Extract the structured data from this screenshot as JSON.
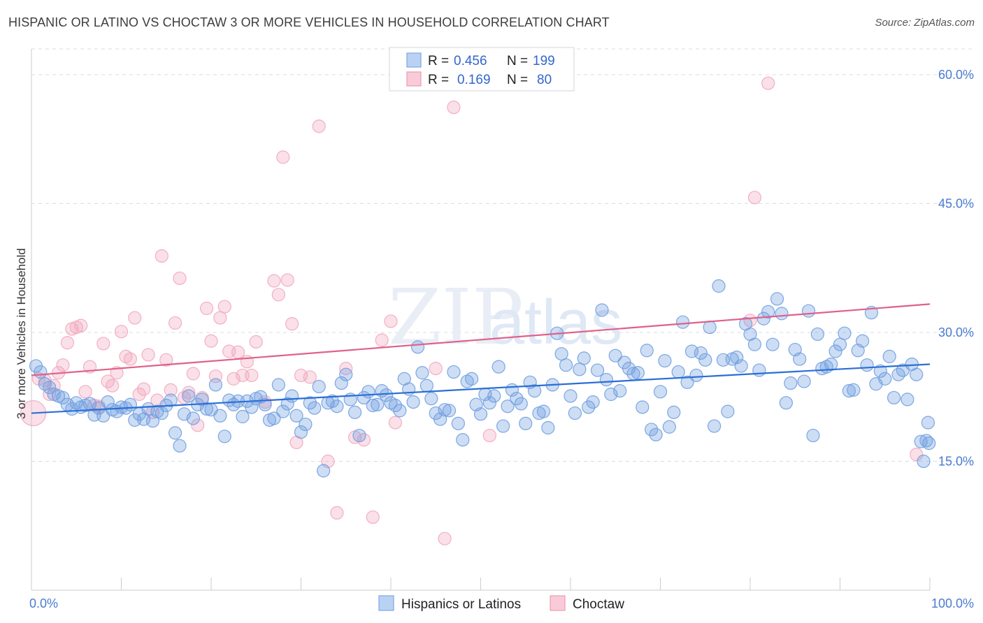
{
  "title": "HISPANIC OR LATINO VS CHOCTAW 3 OR MORE VEHICLES IN HOUSEHOLD CORRELATION CHART",
  "source": "Source: ZipAtlas.com",
  "watermark": {
    "zip": "ZIP",
    "atlas": "atlas"
  },
  "colors": {
    "blue": "#6f9fe0",
    "blue_line": "#2a6fd6",
    "pink": "#f2a7bd",
    "pink_line": "#e0608a",
    "grid": "#d8dce3"
  },
  "legend": {
    "rows": [
      {
        "r_label": "R =",
        "r_value": "0.456",
        "n_label": "N =",
        "n_value": "199"
      },
      {
        "r_label": "R =",
        "r_value": "0.169",
        "n_label": "N =",
        "n_value": "80"
      }
    ]
  },
  "bottom_legend": [
    "Hispanics or Latinos",
    "Choctaw"
  ],
  "chart_data": {
    "type": "scatter",
    "xlabel": "",
    "ylabel": "3 or more Vehicles in Household",
    "xlim": [
      0,
      100
    ],
    "ylim": [
      0,
      63
    ],
    "x_tick_labels": [
      "0.0%",
      "100.0%"
    ],
    "y_ticks": [
      15,
      30,
      45,
      60
    ],
    "y_tick_labels": [
      "15.0%",
      "30.0%",
      "45.0%",
      "60.0%"
    ],
    "grid": true,
    "legend_position": "top-center",
    "series": [
      {
        "name": "Hispanics or Latinos",
        "trend": {
          "x": [
            0,
            100
          ],
          "y": [
            20.6,
            26.3
          ]
        },
        "points": [
          [
            0.5,
            26.1
          ],
          [
            1,
            25.4
          ],
          [
            1.5,
            24.0
          ],
          [
            2,
            23.6
          ],
          [
            2.5,
            22.8
          ],
          [
            3,
            22.6
          ],
          [
            3.5,
            22.4
          ],
          [
            4,
            21.6
          ],
          [
            4.5,
            21.1
          ],
          [
            5,
            21.8
          ],
          [
            5.5,
            21.3
          ],
          [
            6,
            21.5
          ],
          [
            6.5,
            21.7
          ],
          [
            7,
            20.4
          ],
          [
            7.5,
            21.2
          ],
          [
            8,
            20.3
          ],
          [
            8.5,
            21.9
          ],
          [
            9,
            21.0
          ],
          [
            9.5,
            20.8
          ],
          [
            10,
            21.3
          ],
          [
            10.5,
            21.2
          ],
          [
            11,
            21.6
          ],
          [
            11.5,
            19.8
          ],
          [
            12,
            20.5
          ],
          [
            12.5,
            19.9
          ],
          [
            13,
            21.1
          ],
          [
            13.5,
            19.7
          ],
          [
            14,
            20.8
          ],
          [
            14.5,
            20.6
          ],
          [
            15,
            21.5
          ],
          [
            15.5,
            22.1
          ],
          [
            16,
            18.3
          ],
          [
            16.5,
            16.8
          ],
          [
            17,
            20.5
          ],
          [
            17.5,
            22.6
          ],
          [
            18,
            20.0
          ],
          [
            18.5,
            21.6
          ],
          [
            19,
            22.2
          ],
          [
            19.5,
            21.1
          ],
          [
            20,
            21.0
          ],
          [
            20.5,
            23.9
          ],
          [
            21,
            20.3
          ],
          [
            21.5,
            17.9
          ],
          [
            22,
            22.1
          ],
          [
            22.5,
            21.6
          ],
          [
            23,
            22.0
          ],
          [
            23.5,
            20.2
          ],
          [
            24,
            22.0
          ],
          [
            24.5,
            21.3
          ],
          [
            25,
            22.3
          ],
          [
            25.5,
            22.5
          ],
          [
            26,
            21.6
          ],
          [
            26.5,
            19.8
          ],
          [
            27,
            20.0
          ],
          [
            27.5,
            23.9
          ],
          [
            28,
            20.8
          ],
          [
            28.5,
            21.7
          ],
          [
            29,
            22.6
          ],
          [
            29.5,
            20.3
          ],
          [
            30,
            18.4
          ],
          [
            30.5,
            19.3
          ],
          [
            31,
            21.8
          ],
          [
            31.5,
            21.2
          ],
          [
            32,
            23.7
          ],
          [
            32.5,
            13.9
          ],
          [
            33,
            21.8
          ],
          [
            33.5,
            22.0
          ],
          [
            34,
            21.4
          ],
          [
            34.5,
            24.1
          ],
          [
            35,
            25.1
          ],
          [
            35.5,
            22.2
          ],
          [
            36,
            20.7
          ],
          [
            36.5,
            18.0
          ],
          [
            37,
            22.4
          ],
          [
            37.5,
            23.1
          ],
          [
            38,
            21.5
          ],
          [
            38.5,
            21.6
          ],
          [
            39,
            23.2
          ],
          [
            39.5,
            22.7
          ],
          [
            40,
            21.8
          ],
          [
            40.5,
            21.5
          ],
          [
            41,
            20.9
          ],
          [
            41.5,
            24.6
          ],
          [
            42,
            23.4
          ],
          [
            42.5,
            21.9
          ],
          [
            43,
            28.3
          ],
          [
            43.5,
            25.3
          ],
          [
            44,
            23.8
          ],
          [
            44.5,
            22.3
          ],
          [
            45,
            20.6
          ],
          [
            45.5,
            19.9
          ],
          [
            46,
            21.0
          ],
          [
            46.5,
            20.9
          ],
          [
            47,
            25.4
          ],
          [
            47.5,
            19.4
          ],
          [
            48,
            17.5
          ],
          [
            48.5,
            24.3
          ],
          [
            49,
            24.6
          ],
          [
            49.5,
            21.6
          ],
          [
            50,
            20.5
          ],
          [
            50.5,
            22.8
          ],
          [
            51,
            21.8
          ],
          [
            51.5,
            22.6
          ],
          [
            52,
            26.0
          ],
          [
            52.5,
            19.1
          ],
          [
            53,
            21.4
          ],
          [
            53.5,
            23.3
          ],
          [
            54,
            22.3
          ],
          [
            54.5,
            21.7
          ],
          [
            55,
            19.4
          ],
          [
            55.5,
            24.2
          ],
          [
            56,
            23.2
          ],
          [
            56.5,
            20.6
          ],
          [
            57,
            20.8
          ],
          [
            57.5,
            18.9
          ],
          [
            58,
            23.9
          ],
          [
            58.5,
            29.9
          ],
          [
            59,
            27.5
          ],
          [
            59.5,
            26.2
          ],
          [
            60,
            22.6
          ],
          [
            60.5,
            20.6
          ],
          [
            61,
            25.7
          ],
          [
            61.5,
            27.0
          ],
          [
            62,
            21.3
          ],
          [
            62.5,
            21.9
          ],
          [
            63,
            25.6
          ],
          [
            63.5,
            32.6
          ],
          [
            64,
            24.5
          ],
          [
            64.5,
            22.8
          ],
          [
            65,
            27.3
          ],
          [
            65.5,
            23.2
          ],
          [
            66,
            26.5
          ],
          [
            66.5,
            25.8
          ],
          [
            67,
            25.2
          ],
          [
            67.5,
            25.3
          ],
          [
            68,
            21.3
          ],
          [
            68.5,
            27.9
          ],
          [
            69,
            18.7
          ],
          [
            69.5,
            18.1
          ],
          [
            70,
            23.1
          ],
          [
            70.5,
            26.7
          ],
          [
            71,
            19.0
          ],
          [
            71.5,
            20.7
          ],
          [
            72,
            25.4
          ],
          [
            72.5,
            31.2
          ],
          [
            73,
            24.2
          ],
          [
            73.5,
            27.8
          ],
          [
            74,
            25.0
          ],
          [
            74.5,
            27.6
          ],
          [
            75,
            26.8
          ],
          [
            75.5,
            30.6
          ],
          [
            76,
            19.1
          ],
          [
            76.5,
            35.4
          ],
          [
            77,
            26.8
          ],
          [
            77.5,
            20.8
          ],
          [
            78,
            26.9
          ],
          [
            78.5,
            27.1
          ],
          [
            79,
            26.1
          ],
          [
            79.5,
            31.0
          ],
          [
            80,
            29.8
          ],
          [
            80.5,
            28.6
          ],
          [
            81,
            25.6
          ],
          [
            81.5,
            31.6
          ],
          [
            82,
            32.4
          ],
          [
            82.5,
            28.6
          ],
          [
            83,
            33.9
          ],
          [
            83.5,
            32.2
          ],
          [
            84,
            21.8
          ],
          [
            84.5,
            24.1
          ],
          [
            85,
            28.0
          ],
          [
            85.5,
            26.9
          ],
          [
            86,
            24.3
          ],
          [
            86.5,
            32.5
          ],
          [
            87,
            18.0
          ],
          [
            87.5,
            29.8
          ],
          [
            88,
            25.8
          ],
          [
            88.5,
            26.0
          ],
          [
            89,
            26.3
          ],
          [
            89.5,
            27.8
          ],
          [
            90,
            28.6
          ],
          [
            90.5,
            29.9
          ],
          [
            91,
            23.2
          ],
          [
            91.5,
            23.3
          ],
          [
            92,
            27.9
          ],
          [
            92.5,
            29.0
          ],
          [
            93,
            26.2
          ],
          [
            93.5,
            32.3
          ],
          [
            94,
            24.0
          ],
          [
            94.5,
            25.5
          ],
          [
            95,
            24.6
          ],
          [
            95.5,
            27.2
          ],
          [
            96,
            22.4
          ],
          [
            96.5,
            25.1
          ],
          [
            97,
            25.6
          ],
          [
            97.5,
            22.2
          ],
          [
            98,
            26.3
          ],
          [
            98.5,
            25.1
          ],
          [
            99,
            17.3
          ],
          [
            99.3,
            15.0
          ],
          [
            99.6,
            17.4
          ],
          [
            99.8,
            19.5
          ],
          [
            99.9,
            17.1
          ]
        ]
      },
      {
        "name": "Choctaw",
        "trend": {
          "x": [
            0,
            100
          ],
          "y": [
            25.0,
            33.3
          ]
        },
        "points": [
          [
            0.2,
            20.6
          ],
          [
            0.8,
            24.6
          ],
          [
            1.5,
            24.4
          ],
          [
            2,
            22.8
          ],
          [
            2.5,
            23.8
          ],
          [
            3,
            25.3
          ],
          [
            3.5,
            26.2
          ],
          [
            4,
            28.8
          ],
          [
            4.5,
            30.4
          ],
          [
            5,
            30.6
          ],
          [
            5.5,
            30.8
          ],
          [
            6,
            23.1
          ],
          [
            6.5,
            26.0
          ],
          [
            7,
            21.5
          ],
          [
            7.5,
            21.4
          ],
          [
            8,
            28.7
          ],
          [
            8.5,
            24.3
          ],
          [
            9,
            23.8
          ],
          [
            9.5,
            25.3
          ],
          [
            10,
            30.1
          ],
          [
            10.5,
            27.2
          ],
          [
            11,
            26.9
          ],
          [
            11.5,
            31.7
          ],
          [
            12,
            22.8
          ],
          [
            12.5,
            23.4
          ],
          [
            13,
            27.4
          ],
          [
            13.5,
            20.7
          ],
          [
            14,
            22.1
          ],
          [
            14.5,
            38.9
          ],
          [
            15,
            26.8
          ],
          [
            15.5,
            23.3
          ],
          [
            16,
            31.1
          ],
          [
            16.5,
            36.3
          ],
          [
            17,
            22.4
          ],
          [
            17.5,
            23.0
          ],
          [
            18,
            25.2
          ],
          [
            18.5,
            19.2
          ],
          [
            19,
            22.4
          ],
          [
            19.5,
            32.8
          ],
          [
            20,
            29.0
          ],
          [
            20.5,
            24.9
          ],
          [
            21,
            31.7
          ],
          [
            21.5,
            33.0
          ],
          [
            22,
            27.8
          ],
          [
            22.5,
            24.6
          ],
          [
            23,
            27.7
          ],
          [
            23.5,
            25.0
          ],
          [
            24,
            26.6
          ],
          [
            24.5,
            25.0
          ],
          [
            25,
            28.9
          ],
          [
            26,
            21.9
          ],
          [
            27,
            36.0
          ],
          [
            27.5,
            34.4
          ],
          [
            28,
            50.4
          ],
          [
            28.5,
            36.1
          ],
          [
            29,
            31.0
          ],
          [
            29.5,
            17.2
          ],
          [
            30,
            25.0
          ],
          [
            31,
            24.8
          ],
          [
            32,
            54.0
          ],
          [
            33,
            15.0
          ],
          [
            34,
            9.0
          ],
          [
            35,
            25.8
          ],
          [
            36,
            17.8
          ],
          [
            37,
            17.5
          ],
          [
            38,
            8.5
          ],
          [
            39,
            29.1
          ],
          [
            40,
            31.3
          ],
          [
            40.5,
            19.5
          ],
          [
            45,
            25.8
          ],
          [
            46,
            6.0
          ],
          [
            47,
            56.2
          ],
          [
            51,
            18.0
          ],
          [
            80,
            31.4
          ],
          [
            80.5,
            45.7
          ],
          [
            82,
            59.0
          ],
          [
            98.5,
            15.8
          ]
        ]
      }
    ]
  }
}
